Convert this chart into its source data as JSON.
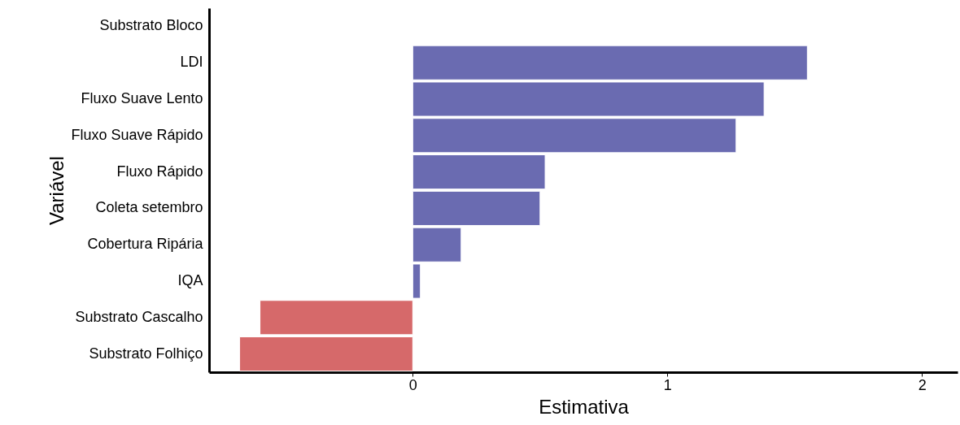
{
  "chart_data": {
    "type": "bar",
    "orientation": "horizontal",
    "xlabel": "Estimativa",
    "ylabel": "Variável",
    "categories": [
      "Substrato Bloco",
      "LDI",
      "Fluxo Suave Lento",
      "Fluxo Suave Rápido",
      "Fluxo Rápido",
      "Coleta setembro",
      "Cobertura Ripária",
      "IQA",
      "Substrato Cascalho",
      "Substrato Folhiço"
    ],
    "values": [
      null,
      1.55,
      1.38,
      1.27,
      0.52,
      0.5,
      0.19,
      0.03,
      -0.6,
      -0.68
    ],
    "colors": [
      "#6a6bb1",
      "#6a6bb1",
      "#6a6bb1",
      "#6a6bb1",
      "#6a6bb1",
      "#6a6bb1",
      "#6a6bb1",
      "#6a6bb1",
      "#d6696a",
      "#d6696a"
    ],
    "xlim": [
      -0.8,
      2.14
    ],
    "xticks": [
      0,
      1,
      2
    ]
  }
}
